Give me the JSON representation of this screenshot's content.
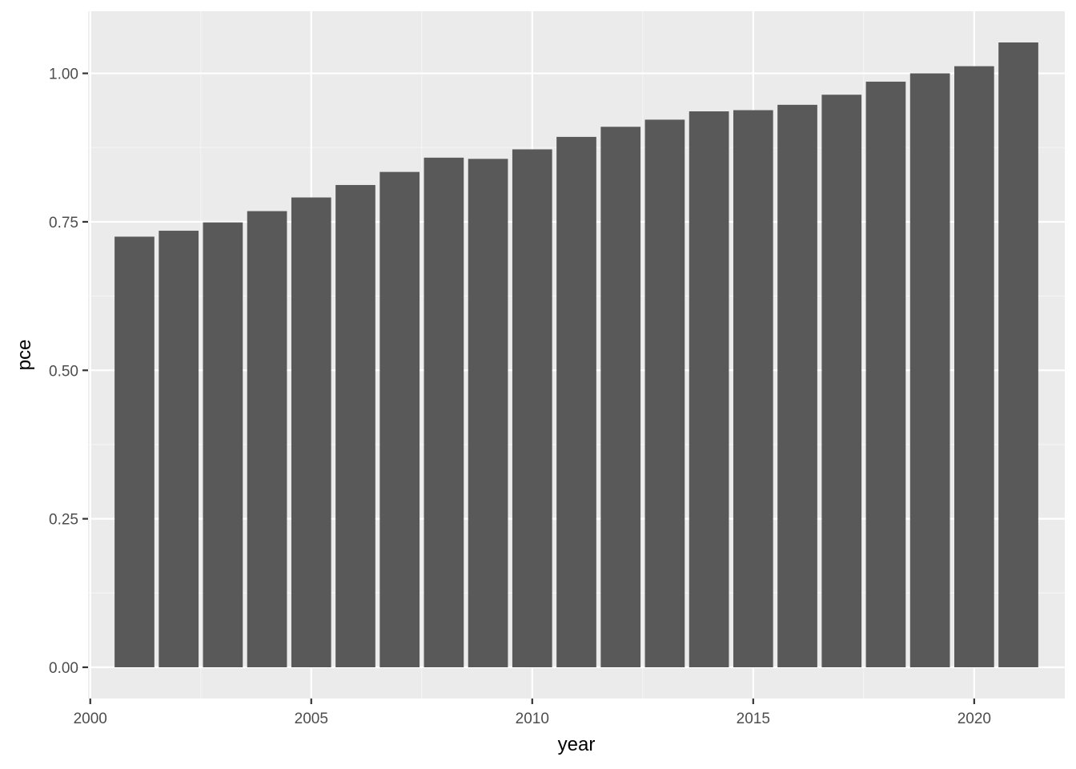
{
  "chart_data": {
    "type": "bar",
    "title": "",
    "xlabel": "year",
    "ylabel": "pce",
    "x": [
      2001,
      2002,
      2003,
      2004,
      2005,
      2006,
      2007,
      2008,
      2009,
      2010,
      2011,
      2012,
      2013,
      2014,
      2015,
      2016,
      2017,
      2018,
      2019,
      2020,
      2021
    ],
    "values": [
      0.725,
      0.735,
      0.749,
      0.768,
      0.791,
      0.812,
      0.834,
      0.858,
      0.856,
      0.872,
      0.893,
      0.91,
      0.922,
      0.936,
      0.938,
      0.947,
      0.964,
      0.986,
      1.0,
      1.012,
      1.052
    ],
    "xlim": [
      1999.95,
      2022.05
    ],
    "ylim": [
      -0.0526,
      1.1046
    ],
    "x_ticks": [
      2000,
      2005,
      2010,
      2015,
      2020
    ],
    "x_tick_labels": [
      "2000",
      "2005",
      "2010",
      "2015",
      "2020"
    ],
    "y_ticks": [
      0,
      0.25,
      0.5,
      0.75,
      1
    ],
    "y_tick_labels": [
      "0.00",
      "0.25",
      "0.50",
      "0.75",
      "1.00"
    ],
    "grid": true,
    "legend": "none",
    "colors": {
      "bar": "#595959",
      "panel": "#ebebeb",
      "grid_major": "#ffffff",
      "grid_minor": "#f5f5f5",
      "tick": "#333333"
    }
  }
}
